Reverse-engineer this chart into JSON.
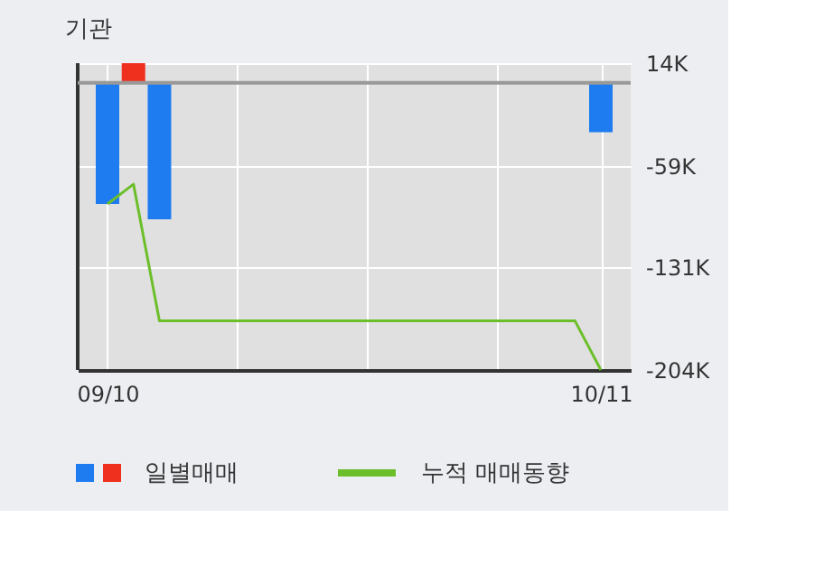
{
  "chart_data": {
    "type": "bar",
    "title": "기관",
    "categories": [
      "09/10",
      null,
      null,
      null,
      null,
      null,
      null,
      null,
      null,
      null,
      null,
      null,
      null,
      null,
      null,
      null,
      null,
      null,
      null,
      "10/11"
    ],
    "series": [
      {
        "name": "일별매매",
        "colors": [
          "#1e7cf0",
          "#f0301e",
          "#1e7cf0",
          "#1e7cf0",
          "#1e7cf0",
          "#1e7cf0",
          "#1e7cf0",
          "#1e7cf0",
          "#1e7cf0",
          "#1e7cf0",
          "#1e7cf0",
          "#1e7cf0",
          "#1e7cf0",
          "#1e7cf0",
          "#1e7cf0",
          "#1e7cf0",
          "#1e7cf0",
          "#1e7cf0",
          "#1e7cf0",
          "#1e7cf0"
        ],
        "values": [
          -86000,
          14000,
          -97000,
          0,
          0,
          0,
          0,
          0,
          0,
          0,
          0,
          0,
          0,
          0,
          0,
          0,
          0,
          0,
          0,
          -35000
        ]
      },
      {
        "name": "누적 매매동향",
        "type": "line",
        "color": "#6cbf2a",
        "values": [
          -86000,
          -72000,
          -169000,
          -169000,
          -169000,
          -169000,
          -169000,
          -169000,
          -169000,
          -169000,
          -169000,
          -169000,
          -169000,
          -169000,
          -169000,
          -169000,
          -169000,
          -169000,
          -169000,
          -204000
        ]
      }
    ],
    "ylim": [
      -204000,
      14000
    ],
    "yticks": [
      {
        "value": 14000,
        "label": "14K"
      },
      {
        "value": -59000,
        "label": "-59K"
      },
      {
        "value": -131000,
        "label": "-131K"
      },
      {
        "value": -204000,
        "label": "-204K"
      }
    ],
    "ref_lines": [
      {
        "axis": "y",
        "value": 0,
        "color": "#999999"
      }
    ],
    "grid": true,
    "legend": "bottom"
  }
}
